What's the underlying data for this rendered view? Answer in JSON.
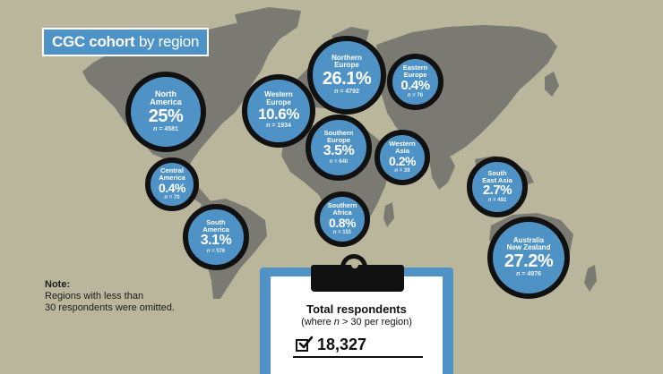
{
  "title": {
    "bold": "CGC cohort",
    "rest": " by region"
  },
  "colors": {
    "background": "#b9b69b",
    "land": "#7a7a72",
    "bubble": "#4f93c6",
    "ring": "#111111",
    "clipboard": "#4f93c6"
  },
  "regions": [
    {
      "name": "North\nAmerica",
      "percent": "25%",
      "n_label": "n",
      "n_value": "= 4581"
    },
    {
      "name": "Western\nEurope",
      "percent": "10.6%",
      "n_label": "n",
      "n_value": "= 1934"
    },
    {
      "name": "Northern\nEurope",
      "percent": "26.1%",
      "n_label": "n",
      "n_value": "= 4792"
    },
    {
      "name": "Eastern\nEurope",
      "percent": "0.4%",
      "n_label": "n",
      "n_value": "= 76"
    },
    {
      "name": "Southern\nEurope",
      "percent": "3.5%",
      "n_label": "n",
      "n_value": "= 640"
    },
    {
      "name": "Western\nAsia",
      "percent": "0.2%",
      "n_label": "n",
      "n_value": "= 39"
    },
    {
      "name": "Central\nAmerica",
      "percent": "0.4%",
      "n_label": "n",
      "n_value": "= 70"
    },
    {
      "name": "South\nEast Asia",
      "percent": "2.7%",
      "n_label": "n",
      "n_value": "= 492"
    },
    {
      "name": "Southern\nAfrica",
      "percent": "0.8%",
      "n_label": "n",
      "n_value": "= 151"
    },
    {
      "name": "South\nAmerica",
      "percent": "3.1%",
      "n_label": "n",
      "n_value": "= 576"
    },
    {
      "name": "Australia\nNew Zealand",
      "percent": "27.2%",
      "n_label": "n",
      "n_value": "= 4976"
    }
  ],
  "note": {
    "title": "Note:",
    "line1": "Regions with less than",
    "line2": "30 respondents were omitted."
  },
  "total": {
    "label": "Total respondents",
    "sub_prefix": "(where ",
    "sub_n": "n",
    "sub_suffix": " > 30 per region)",
    "value": "18,327"
  }
}
